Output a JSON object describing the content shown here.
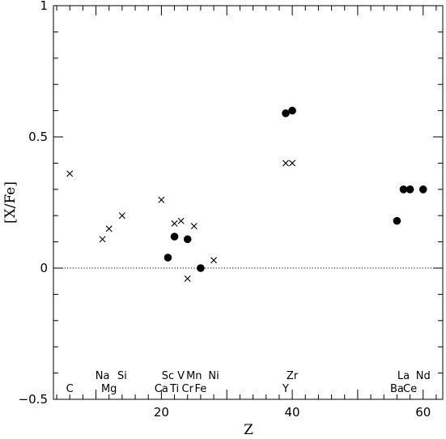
{
  "chart_data": {
    "type": "scatter",
    "title": "",
    "xlabel": "Z",
    "ylabel": "[X/Fe]",
    "xlim": [
      3.5,
      63
    ],
    "ylim": [
      -0.5,
      1
    ],
    "x_ticks": [
      20,
      40,
      60
    ],
    "y_ticks": [
      -0.5,
      0,
      0.5,
      1
    ],
    "x_tick_labels": [
      "20",
      "40",
      "60"
    ],
    "y_tick_labels": [
      "−0.5",
      "0",
      "0.5",
      "1"
    ],
    "reference_line": {
      "y": 0,
      "style": "dotted"
    },
    "legend": "none",
    "grid": false,
    "series": [
      {
        "marker": "cross",
        "points": [
          {
            "x": 6,
            "y": 0.36
          },
          {
            "x": 11,
            "y": 0.11
          },
          {
            "x": 12,
            "y": 0.15
          },
          {
            "x": 14,
            "y": 0.2
          },
          {
            "x": 20,
            "y": 0.26
          },
          {
            "x": 22,
            "y": 0.17
          },
          {
            "x": 23,
            "y": 0.18
          },
          {
            "x": 24,
            "y": -0.04
          },
          {
            "x": 25,
            "y": 0.16
          },
          {
            "x": 28,
            "y": 0.03
          },
          {
            "x": 39,
            "y": 0.4
          },
          {
            "x": 40,
            "y": 0.4
          }
        ]
      },
      {
        "marker": "filled-circle",
        "points": [
          {
            "x": 21,
            "y": 0.04
          },
          {
            "x": 22,
            "y": 0.12
          },
          {
            "x": 24,
            "y": 0.11
          },
          {
            "x": 26,
            "y": 0.0
          },
          {
            "x": 39,
            "y": 0.59
          },
          {
            "x": 40,
            "y": 0.6
          },
          {
            "x": 56,
            "y": 0.18
          },
          {
            "x": 57,
            "y": 0.3
          },
          {
            "x": 58,
            "y": 0.3
          },
          {
            "x": 60,
            "y": 0.3
          }
        ]
      }
    ],
    "element_labels": [
      {
        "text": "C",
        "x": 6,
        "row": "lower"
      },
      {
        "text": "Na",
        "x": 11,
        "row": "upper"
      },
      {
        "text": "Mg",
        "x": 12,
        "row": "lower"
      },
      {
        "text": "Si",
        "x": 14,
        "row": "upper"
      },
      {
        "text": "Ca",
        "x": 20,
        "row": "lower"
      },
      {
        "text": "Sc",
        "x": 21,
        "row": "upper"
      },
      {
        "text": "Ti",
        "x": 22,
        "row": "lower"
      },
      {
        "text": "V",
        "x": 23,
        "row": "upper"
      },
      {
        "text": "Cr",
        "x": 24,
        "row": "lower"
      },
      {
        "text": "Mn",
        "x": 25,
        "row": "upper"
      },
      {
        "text": "Fe",
        "x": 26,
        "row": "lower"
      },
      {
        "text": "Ni",
        "x": 28,
        "row": "upper"
      },
      {
        "text": "Y",
        "x": 39,
        "row": "lower"
      },
      {
        "text": "Zr",
        "x": 40,
        "row": "upper"
      },
      {
        "text": "Ba",
        "x": 56,
        "row": "lower"
      },
      {
        "text": "La",
        "x": 57,
        "row": "upper"
      },
      {
        "text": "Ce",
        "x": 58,
        "row": "lower"
      },
      {
        "text": "Nd",
        "x": 60,
        "row": "upper"
      }
    ]
  }
}
